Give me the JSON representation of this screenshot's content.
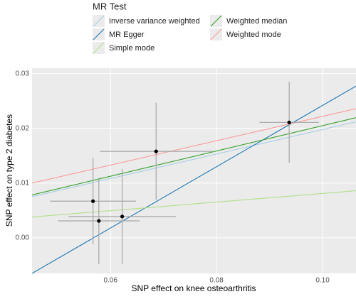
{
  "chart_data": {
    "type": "scatter",
    "legend_title": "MR Test",
    "x_label": "SNP effect on knee osteoarthritis",
    "y_label": "SNP effect on type 2 diabetes",
    "xlim": [
      0.0452,
      0.1063
    ],
    "ylim": [
      -0.0065,
      0.031
    ],
    "xticks": [
      0.06,
      0.08,
      {
        "value": 0.1,
        "label": "0.10"
      }
    ],
    "yticks": [
      {
        "value": 0,
        "label": "0.00"
      },
      0.01,
      0.02,
      0.03
    ],
    "grid": true,
    "points": {
      "color": "#000000",
      "x": [
        0.0567,
        0.0578,
        0.0622,
        0.0686,
        0.0937
      ],
      "values": [
        0.0067,
        0.0031,
        0.0039,
        0.0158,
        0.0211
      ],
      "xerr": [
        0.0081,
        0.0077,
        0.0101,
        0.0106,
        0.0056
      ],
      "yerr": [
        0.0079,
        0.0079,
        0.0087,
        0.0089,
        0.0074
      ]
    },
    "series": [
      {
        "name": "Inverse variance weighted",
        "color": "#a6cee3",
        "slope": 0.224,
        "intercept": -0.0026
      },
      {
        "name": "MR Egger",
        "color": "#1f78b4",
        "slope": 0.56,
        "intercept": -0.0318
      },
      {
        "name": "Simple mode",
        "color": "#b2df8a",
        "slope": 0.0786,
        "intercept": 0.00025
      },
      {
        "name": "Weighted median",
        "color": "#33a02c",
        "slope": 0.231,
        "intercept": -0.0026
      },
      {
        "name": "Weighted mode",
        "color": "#fb9a99",
        "slope": 0.2226,
        "intercept": -6e-05
      }
    ]
  }
}
